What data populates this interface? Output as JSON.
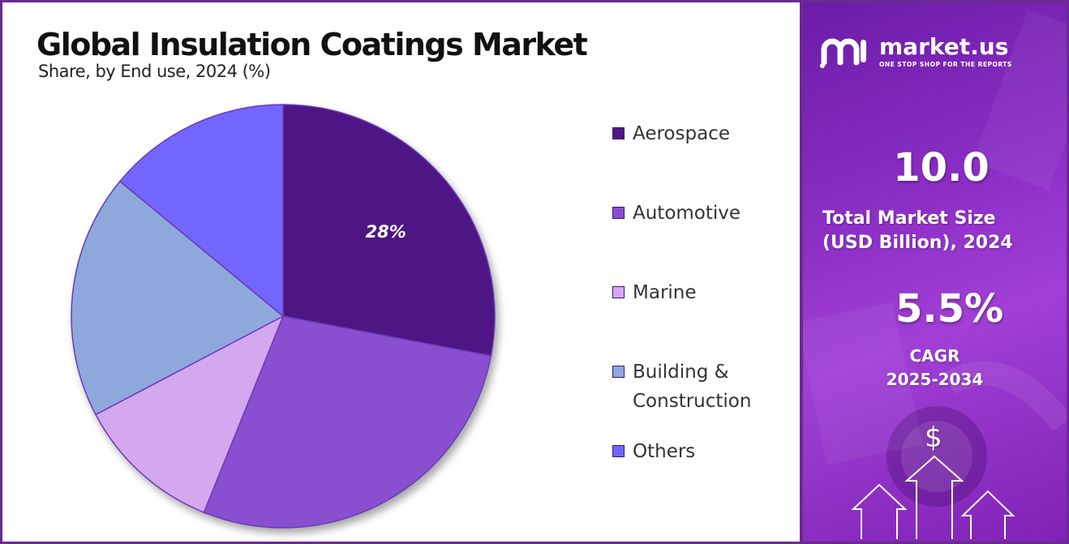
{
  "header": {
    "title": "Global Insulation Coatings Market",
    "subtitle": "Share, by End use, 2024 (%)"
  },
  "chart_data": {
    "type": "pie",
    "title": "Global Insulation Coatings Market",
    "subtitle": "Share, by End use, 2024 (%)",
    "categories": [
      "Aerospace",
      "Automotive",
      "Marine",
      "Building & Construction",
      "Others"
    ],
    "values": [
      28,
      28.1,
      11.2,
      18.7,
      14
    ],
    "data_labels": [
      "28%",
      "",
      "",
      "",
      ""
    ],
    "legend_placement": "right",
    "colors": [
      "#4e1784",
      "#8a4fd0",
      "#d4a8ef",
      "#8fa8dc",
      "#7266ff"
    ]
  },
  "legend": {
    "items": [
      {
        "label_line1": "Aerospace",
        "label_line2": "",
        "color": "#4e1784"
      },
      {
        "label_line1": "Automotive",
        "label_line2": "",
        "color": "#8a4fd0"
      },
      {
        "label_line1": "Marine",
        "label_line2": "",
        "color": "#d4a8ef"
      },
      {
        "label_line1": "Building &",
        "label_line2": "Construction",
        "color": "#8fa8dc"
      },
      {
        "label_line1": "Others",
        "label_line2": "",
        "color": "#7266ff"
      }
    ]
  },
  "sidebar": {
    "brand_name": "market.us",
    "brand_tagline": "ONE STOP SHOP FOR THE REPORTS",
    "market_size_value": "10.0",
    "market_size_label_line1": "Total Market Size",
    "market_size_label_line2": "(USD Billion), 2024",
    "cagr_value": "5.5%",
    "cagr_label_line1": "CAGR",
    "cagr_label_line2": "2025-2034",
    "dollar_symbol": "$"
  }
}
